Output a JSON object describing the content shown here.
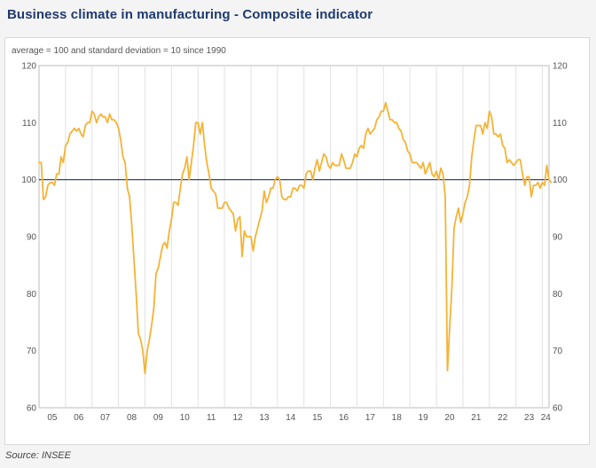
{
  "title": "Business climate in manufacturing - Composite indicator",
  "source": "Source: INSEE",
  "colors": {
    "title": "#1f3a6e",
    "series": "#f5b335",
    "reference_line": "#1f2a6e",
    "grid": "#e2e2e2",
    "background": "#ffffff"
  },
  "chart_data": {
    "type": "line",
    "subtitle": "average = 100 and standard deviation = 10 since 1990",
    "xlabel": "",
    "ylabel": "",
    "ylim": [
      60,
      120
    ],
    "y_ticks": [
      60,
      70,
      80,
      90,
      100,
      110,
      120
    ],
    "y_ticks_right": true,
    "x_ticks": [
      "05",
      "06",
      "07",
      "08",
      "09",
      "10",
      "11",
      "12",
      "13",
      "14",
      "15",
      "16",
      "17",
      "18",
      "19",
      "20",
      "21",
      "22",
      "23",
      "24"
    ],
    "x_range": [
      "2005-01",
      "2024-04"
    ],
    "grid": "vertical",
    "reference_line": 100,
    "series": [
      {
        "frequency": "monthly",
        "start": "2005-01",
        "values": [
          103,
          103,
          96.5,
          97,
          99,
          99.5,
          99.5,
          99,
          101,
          101,
          104,
          103,
          106,
          106.5,
          108,
          108.5,
          109,
          108.5,
          109,
          108,
          107.5,
          109.5,
          110,
          110,
          112,
          111.5,
          110,
          111,
          111.5,
          111,
          111,
          110,
          111.5,
          110.5,
          110.5,
          110,
          109,
          107,
          104,
          103,
          98.5,
          97,
          92,
          86,
          80,
          73,
          72,
          70,
          66,
          70,
          72,
          74.5,
          77.5,
          83.5,
          84.5,
          86.5,
          88.5,
          89,
          88,
          91,
          93,
          96,
          96,
          95.5,
          98.5,
          101,
          102,
          104,
          100,
          103,
          106,
          110,
          110,
          108,
          110,
          106,
          103,
          101,
          98.5,
          98,
          97.5,
          95,
          95,
          95,
          96,
          96,
          95,
          94.5,
          94,
          91,
          93,
          93.5,
          86.5,
          91,
          90,
          90,
          90,
          87.5,
          90,
          91.5,
          93,
          94.5,
          98,
          96,
          97,
          98.5,
          98.5,
          100,
          100.5,
          100,
          97,
          96.5,
          96.5,
          97,
          97,
          98.5,
          98.5,
          98,
          99,
          99,
          98.5,
          101,
          101.5,
          101.5,
          100,
          102,
          103.5,
          101.5,
          103,
          104.5,
          104,
          102.5,
          102,
          103,
          102.5,
          102.5,
          102.5,
          104.5,
          103.5,
          102,
          102,
          102,
          103,
          104.5,
          104,
          105.5,
          106,
          105.5,
          108,
          109,
          108,
          108.5,
          109,
          110.5,
          111,
          112,
          112,
          113.5,
          112,
          110.5,
          110.5,
          110,
          110,
          109,
          108.5,
          107,
          106.5,
          105,
          104.5,
          103,
          103,
          103,
          102.5,
          102,
          103,
          101,
          102,
          103,
          101,
          100.5,
          101.5,
          100,
          102,
          101,
          97,
          66.5,
          74,
          81,
          91.5,
          93.5,
          95,
          92.5,
          94,
          96,
          97,
          99,
          104,
          107,
          109.5,
          109.5,
          109.5,
          108,
          110,
          109,
          112,
          111,
          108,
          108,
          107.5,
          108,
          106,
          105.5,
          103,
          103.5,
          103,
          102.5,
          103,
          103.5,
          103.5,
          101,
          99,
          100.5,
          100.5,
          97,
          99,
          99,
          99.5,
          98.5,
          99.5,
          99,
          102.5,
          100,
          99.5
        ]
      }
    ]
  }
}
